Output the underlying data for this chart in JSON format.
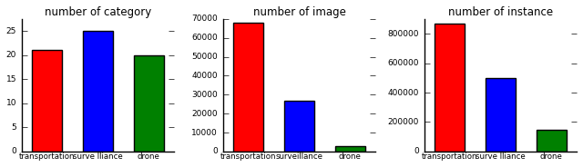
{
  "chart1": {
    "title": "number of category",
    "categories": [
      "transportation",
      "surve lliance",
      "drone"
    ],
    "values": [
      21,
      25,
      20
    ],
    "colors": [
      "red",
      "blue",
      "green"
    ],
    "ylim": [
      0,
      27.5
    ],
    "yticks": [
      0,
      5,
      10,
      15,
      20,
      25
    ]
  },
  "chart2": {
    "title": "number of image",
    "categories": [
      "transportation",
      "surveillance",
      "drone"
    ],
    "values": [
      68000,
      27000,
      3000
    ],
    "colors": [
      "red",
      "blue",
      "green"
    ],
    "ylim": [
      0,
      70000
    ],
    "yticks": [
      0,
      10000,
      20000,
      30000,
      40000,
      50000,
      60000,
      70000
    ]
  },
  "chart3": {
    "title": "number of instance",
    "categories": [
      "transportation",
      "surve lliance",
      "drone"
    ],
    "values": [
      870000,
      500000,
      150000
    ],
    "colors": [
      "red",
      "blue",
      "green"
    ],
    "ylim": [
      0,
      900000
    ],
    "yticks": [
      0,
      200000,
      400000,
      600000,
      800000
    ]
  }
}
